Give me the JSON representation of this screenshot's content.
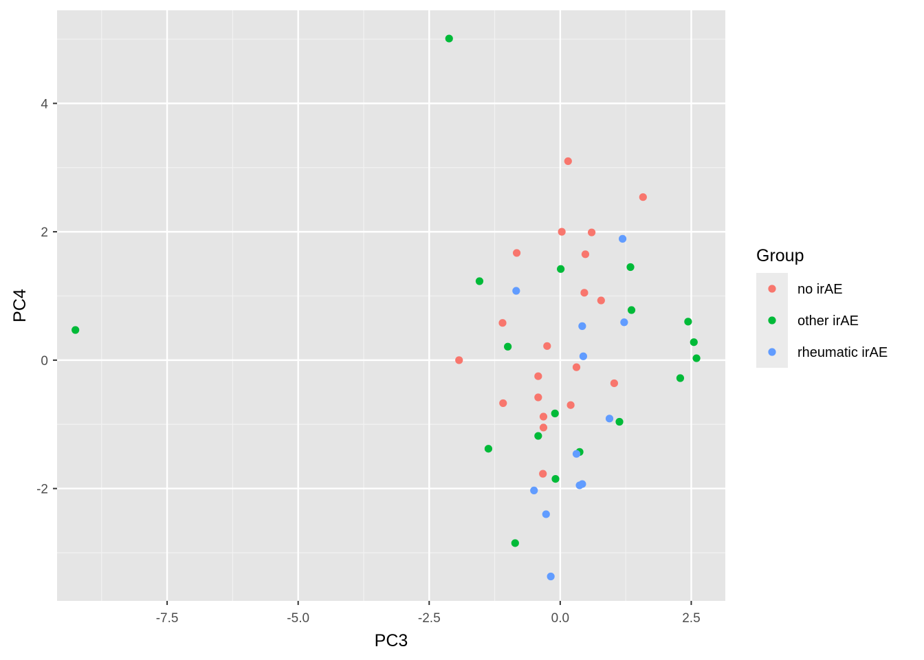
{
  "chart_data": {
    "type": "scatter",
    "title": "",
    "xlabel": "PC3",
    "ylabel": "PC4",
    "xlim": [
      -9.6,
      3.15
    ],
    "ylim": [
      -3.75,
      5.45
    ],
    "x_major_ticks": [
      -7.5,
      -5.0,
      -2.5,
      0.0,
      2.5
    ],
    "x_tick_labels": [
      "-7.5",
      "-5.0",
      "-2.5",
      "0.0",
      "2.5"
    ],
    "x_minor_ticks": [
      -8.75,
      -6.25,
      -3.75,
      -1.25,
      1.25
    ],
    "y_major_ticks": [
      -2,
      0,
      2,
      4
    ],
    "y_tick_labels": [
      "-2",
      "0",
      "2",
      "4"
    ],
    "y_minor_ticks": [
      -3,
      -1,
      1,
      3,
      5
    ],
    "grid": true,
    "legend": {
      "title": "Group",
      "position": "right"
    },
    "series": [
      {
        "name": "no irAE",
        "color": "#F8766D",
        "points": [
          [
            0.15,
            3.1
          ],
          [
            1.58,
            2.54
          ],
          [
            0.03,
            2.0
          ],
          [
            0.6,
            1.99
          ],
          [
            -0.83,
            1.67
          ],
          [
            0.48,
            1.65
          ],
          [
            0.46,
            1.05
          ],
          [
            0.78,
            0.93
          ],
          [
            -1.1,
            0.58
          ],
          [
            -0.25,
            0.22
          ],
          [
            -1.93,
            0.0
          ],
          [
            -0.42,
            -0.25
          ],
          [
            0.31,
            -0.11
          ],
          [
            1.03,
            -0.36
          ],
          [
            -1.09,
            -0.67
          ],
          [
            -0.42,
            -0.58
          ],
          [
            0.2,
            -0.7
          ],
          [
            -0.32,
            -0.88
          ],
          [
            -0.32,
            -1.05
          ],
          [
            -0.33,
            -1.77
          ]
        ]
      },
      {
        "name": "other irAE",
        "color": "#00BA38",
        "points": [
          [
            -2.12,
            5.01
          ],
          [
            -9.25,
            0.47
          ],
          [
            -1.54,
            1.23
          ],
          [
            0.01,
            1.42
          ],
          [
            1.34,
            1.45
          ],
          [
            1.36,
            0.78
          ],
          [
            2.44,
            0.6
          ],
          [
            -1.0,
            0.21
          ],
          [
            2.55,
            0.28
          ],
          [
            2.6,
            0.03
          ],
          [
            2.29,
            -0.28
          ],
          [
            -0.1,
            -0.83
          ],
          [
            1.13,
            -0.96
          ],
          [
            -0.42,
            -1.18
          ],
          [
            -1.37,
            -1.38
          ],
          [
            0.37,
            -1.43
          ],
          [
            -0.09,
            -1.85
          ],
          [
            -0.86,
            -2.85
          ]
        ]
      },
      {
        "name": "rheumatic irAE",
        "color": "#619CFF",
        "points": [
          [
            1.19,
            1.89
          ],
          [
            -0.84,
            1.08
          ],
          [
            1.22,
            0.59
          ],
          [
            0.42,
            0.53
          ],
          [
            0.44,
            0.06
          ],
          [
            0.94,
            -0.91
          ],
          [
            0.31,
            -1.46
          ],
          [
            0.42,
            -1.93
          ],
          [
            0.37,
            -1.95
          ],
          [
            -0.5,
            -2.03
          ],
          [
            -0.27,
            -2.4
          ],
          [
            -0.18,
            -3.37
          ]
        ]
      }
    ]
  }
}
